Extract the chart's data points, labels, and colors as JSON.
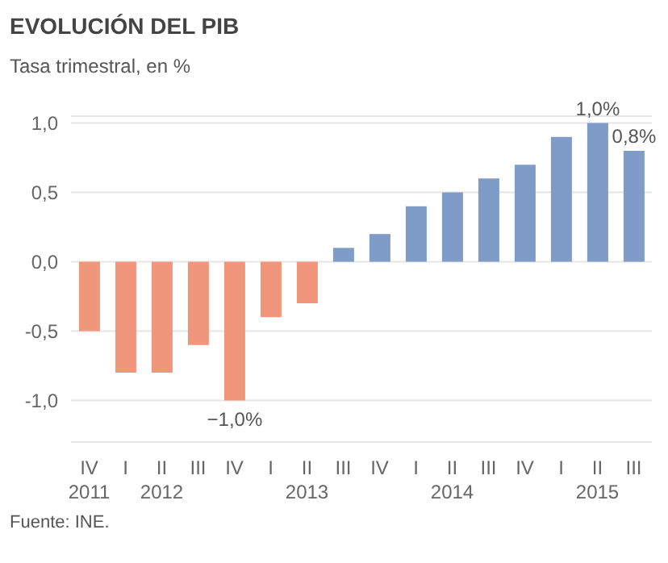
{
  "chart_data": {
    "type": "bar",
    "title": "EVOLUCIÓN DEL PIB",
    "subtitle": "Tasa trimestral, en %",
    "annotations": [
      "Fuente: INE."
    ],
    "categories": [
      "IV\n2011",
      "I",
      "II\n2012",
      "III",
      "IV",
      "I",
      "II\n2013",
      "III",
      "IV",
      "I",
      "II\n2014",
      "III",
      "IV",
      "I",
      "II\n2015",
      "III"
    ],
    "values": [
      -0.5,
      -0.8,
      -0.8,
      -0.6,
      -1.0,
      -0.4,
      -0.3,
      0.1,
      0.2,
      0.4,
      0.5,
      0.6,
      0.7,
      0.9,
      1.0,
      0.8
    ],
    "colors": [
      "#f0967a",
      "#f0967a",
      "#f0967a",
      "#f0967a",
      "#f0967a",
      "#f0967a",
      "#f0967a",
      "#7f9cc8",
      "#7f9cc8",
      "#7f9cc8",
      "#7f9cc8",
      "#7f9cc8",
      "#7f9cc8",
      "#7f9cc8",
      "#7f9cc8",
      "#7f9cc8"
    ],
    "value_labels": [
      null,
      null,
      null,
      null,
      "−1,0%",
      null,
      null,
      null,
      null,
      null,
      null,
      null,
      null,
      null,
      "1,0%",
      "0,8%"
    ],
    "ylim": [
      -1.3,
      1.05
    ],
    "yticks": [
      {
        "value": -1,
        "label": "-1,0"
      },
      {
        "value": -0.5,
        "label": "-0,5"
      },
      {
        "value": 0,
        "label": "0,0"
      },
      {
        "value": 0.5,
        "label": "0,5"
      },
      {
        "value": 1,
        "label": "1,0"
      }
    ],
    "grid": "y"
  }
}
